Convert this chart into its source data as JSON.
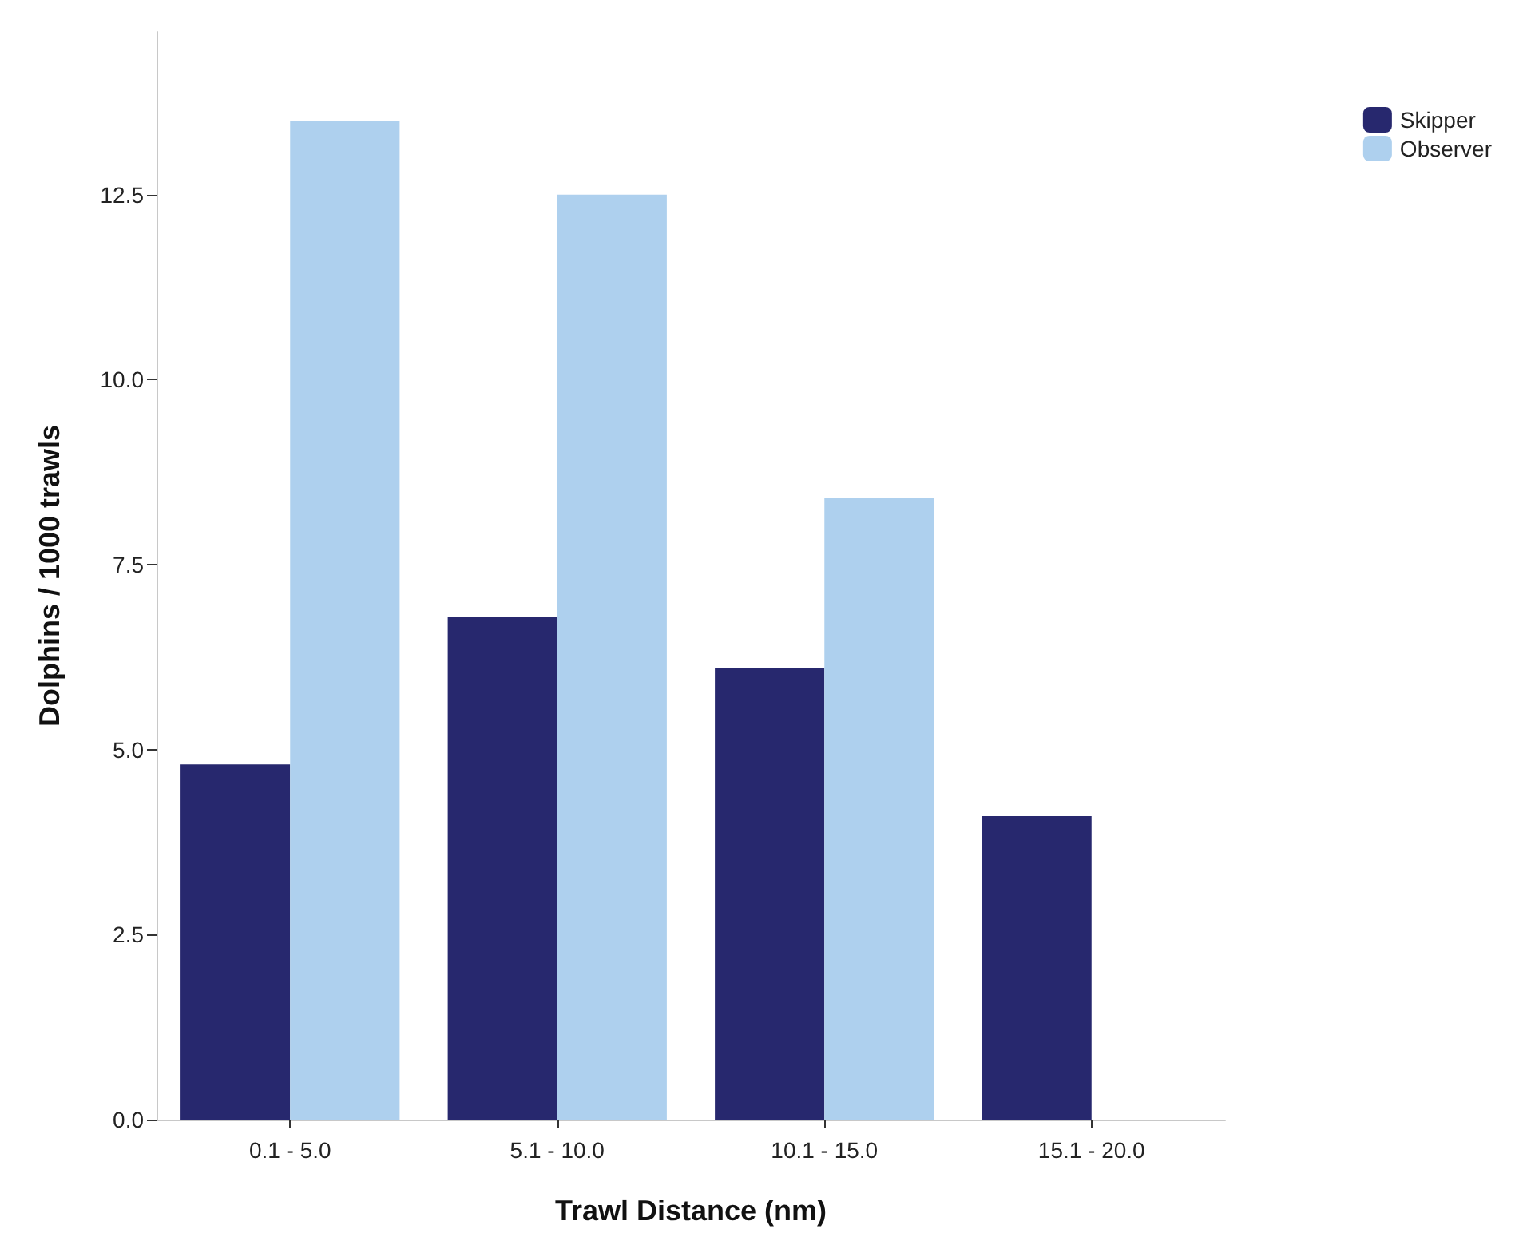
{
  "chart_data": {
    "type": "bar",
    "xlabel": "Trawl Distance (nm)",
    "ylabel": "Dolphins / 1000 trawls",
    "categories": [
      "0.1 - 5.0",
      "5.1 - 10.0",
      "10.1 - 15.0",
      "15.1 - 20.0"
    ],
    "series": [
      {
        "name": "Skipper",
        "color": "#27286e",
        "values": [
          4.8,
          6.8,
          6.1,
          4.1
        ]
      },
      {
        "name": "Observer",
        "color": "#aed0ee",
        "values": [
          13.5,
          12.5,
          8.4,
          0
        ]
      }
    ],
    "ylim": [
      0,
      14.7
    ],
    "yticks": [
      {
        "value": 0,
        "label": "0.0"
      },
      {
        "value": 2.5,
        "label": "2.5"
      },
      {
        "value": 5,
        "label": "5.0"
      },
      {
        "value": 7.5,
        "label": "7.5"
      },
      {
        "value": 10,
        "label": "10.0"
      },
      {
        "value": 12.5,
        "label": "12.5"
      }
    ],
    "grid": false,
    "legend": "top right"
  }
}
